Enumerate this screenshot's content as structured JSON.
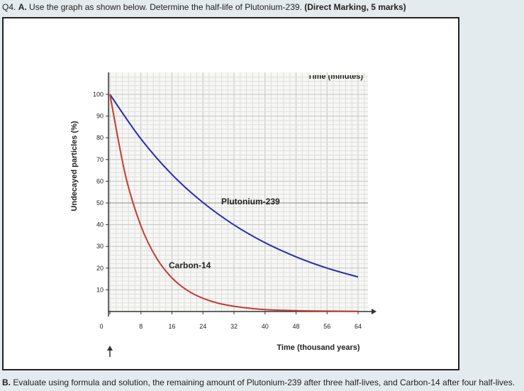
{
  "question": {
    "prefix": "Q4. ",
    "part_a_letter": "A.",
    "text": " Use the graph as shown below. Determine the half-life of Plutonium-239. ",
    "marks": "(Direct Marking, 5 marks)"
  },
  "part_b": {
    "letter": "B.",
    "text": " Evaluate using formula and solution, the remaining amount of Plutonium-239 after three half-lives, and Carbon-14 after four half-lives."
  },
  "chart_data": {
    "type": "line",
    "xlabel": "Time (thousand years)",
    "ylabel": "Undecayed particles (%)",
    "top_label": "Time (minutes)",
    "x_ticks": [
      0,
      8,
      16,
      24,
      32,
      40,
      48,
      56,
      64
    ],
    "y_ticks": [
      10,
      20,
      30,
      40,
      50,
      60,
      70,
      80,
      90,
      100
    ],
    "xlim": [
      0,
      66
    ],
    "ylim": [
      0,
      100
    ],
    "grid": true,
    "series": [
      {
        "name": "Plutonium-239",
        "color": "#2b2bb0",
        "x": [
          0,
          8,
          16,
          24,
          32,
          40,
          48,
          56,
          64
        ],
        "y": [
          100,
          79.5,
          63.1,
          50.2,
          39.9,
          31.7,
          25.2,
          20.0,
          15.9
        ]
      },
      {
        "name": "Carbon-14",
        "color": "#c63a30",
        "x": [
          0,
          4,
          8,
          12,
          16,
          20,
          24,
          28,
          32,
          36,
          40,
          48,
          56,
          64
        ],
        "y": [
          100,
          62.8,
          39.4,
          24.7,
          15.5,
          9.7,
          6.1,
          3.8,
          2.4,
          1.5,
          0.9,
          0.4,
          0.2,
          0.1
        ]
      }
    ]
  }
}
